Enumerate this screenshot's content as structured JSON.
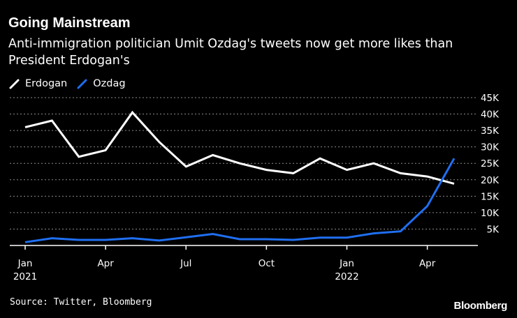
{
  "title": "Going Mainstream",
  "subtitle": "Anti-immigration politician Umit Ozdag's tweets now get more likes than President Erdogan's",
  "source": "Source: Twitter, Bloomberg",
  "brand": "Bloomberg",
  "colors": {
    "background": "#000000",
    "erdogan": "#ffffff",
    "ozdag": "#1f6ff2",
    "grid": "#8c8c8c",
    "axis": "#ffffff"
  },
  "chart_data": {
    "type": "line",
    "title": "Going Mainstream",
    "subtitle": "Anti-immigration politician Umit Ozdag's tweets now get more likes than President Erdogan's",
    "x": [
      "2021-01",
      "2021-02",
      "2021-03",
      "2021-04",
      "2021-05",
      "2021-06",
      "2021-07",
      "2021-08",
      "2021-09",
      "2021-10",
      "2021-11",
      "2021-12",
      "2022-01",
      "2022-02",
      "2022-03",
      "2022-04",
      "2022-05"
    ],
    "series": [
      {
        "name": "Erdogan",
        "color": "#ffffff",
        "values": [
          36000,
          38000,
          27000,
          29000,
          40500,
          31500,
          24000,
          27500,
          25000,
          23000,
          22000,
          26500,
          23000,
          25000,
          22000,
          21000,
          18800
        ]
      },
      {
        "name": "Ozdag",
        "color": "#1f6ff2",
        "values": [
          1000,
          2200,
          1700,
          1700,
          2200,
          1500,
          2500,
          3500,
          1900,
          1900,
          1700,
          2400,
          2400,
          3700,
          4300,
          12000,
          26500
        ]
      }
    ],
    "ylim": [
      0,
      45000
    ],
    "yticks": [
      5000,
      10000,
      15000,
      20000,
      25000,
      30000,
      35000,
      40000,
      45000
    ],
    "ytick_labels": [
      "5K",
      "10K",
      "15K",
      "20K",
      "25K",
      "30K",
      "35K",
      "40K",
      "45K"
    ],
    "xticks": [
      {
        "x": "2021-01",
        "label": "Jan",
        "year": "2021"
      },
      {
        "x": "2021-04",
        "label": "Apr",
        "year": ""
      },
      {
        "x": "2021-07",
        "label": "Jul",
        "year": ""
      },
      {
        "x": "2021-10",
        "label": "Oct",
        "year": ""
      },
      {
        "x": "2022-01",
        "label": "Jan",
        "year": "2022"
      },
      {
        "x": "2022-04",
        "label": "Apr",
        "year": ""
      }
    ],
    "xlabel": "",
    "ylabel": "",
    "legend": "top-left",
    "grid": true
  }
}
